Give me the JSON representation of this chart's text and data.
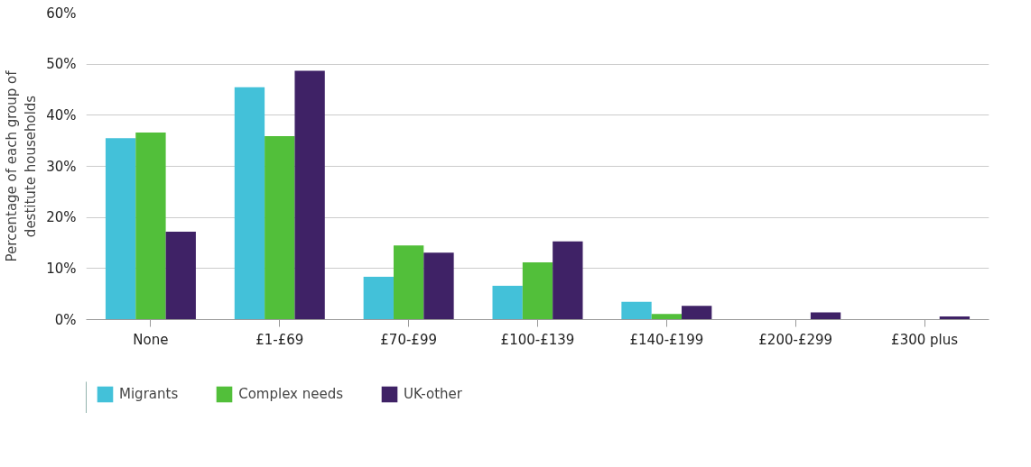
{
  "chart_data": {
    "type": "bar",
    "ylabel": "Percentage of each group of destitute households",
    "categories": [
      "None",
      "£1-£69",
      "£70-£99",
      "£100-£139",
      "£140-£199",
      "£200-£299",
      "£300 plus"
    ],
    "series": [
      {
        "name": "Migrants",
        "color": "#43c1d9",
        "values": [
          35.5,
          45.5,
          8.4,
          6.6,
          3.5,
          0,
          0
        ]
      },
      {
        "name": "Complex needs",
        "color": "#52bf3a",
        "values": [
          36.6,
          35.9,
          14.5,
          11.2,
          1.1,
          0,
          0
        ]
      },
      {
        "name": "UK-other",
        "color": "#3f2266",
        "values": [
          17.2,
          48.7,
          13.1,
          15.3,
          2.7,
          1.4,
          0.6
        ]
      }
    ],
    "ylim": [
      0,
      60
    ],
    "yticks": [
      {
        "value": 0,
        "label": "0%"
      },
      {
        "value": 10,
        "label": "10%"
      },
      {
        "value": 20,
        "label": "20%"
      },
      {
        "value": 30,
        "label": "30%"
      },
      {
        "value": 40,
        "label": "40%"
      },
      {
        "value": 50,
        "label": "50%"
      },
      {
        "value": 60,
        "label": "60%"
      }
    ],
    "grid": "y",
    "legend": "bottom left"
  }
}
